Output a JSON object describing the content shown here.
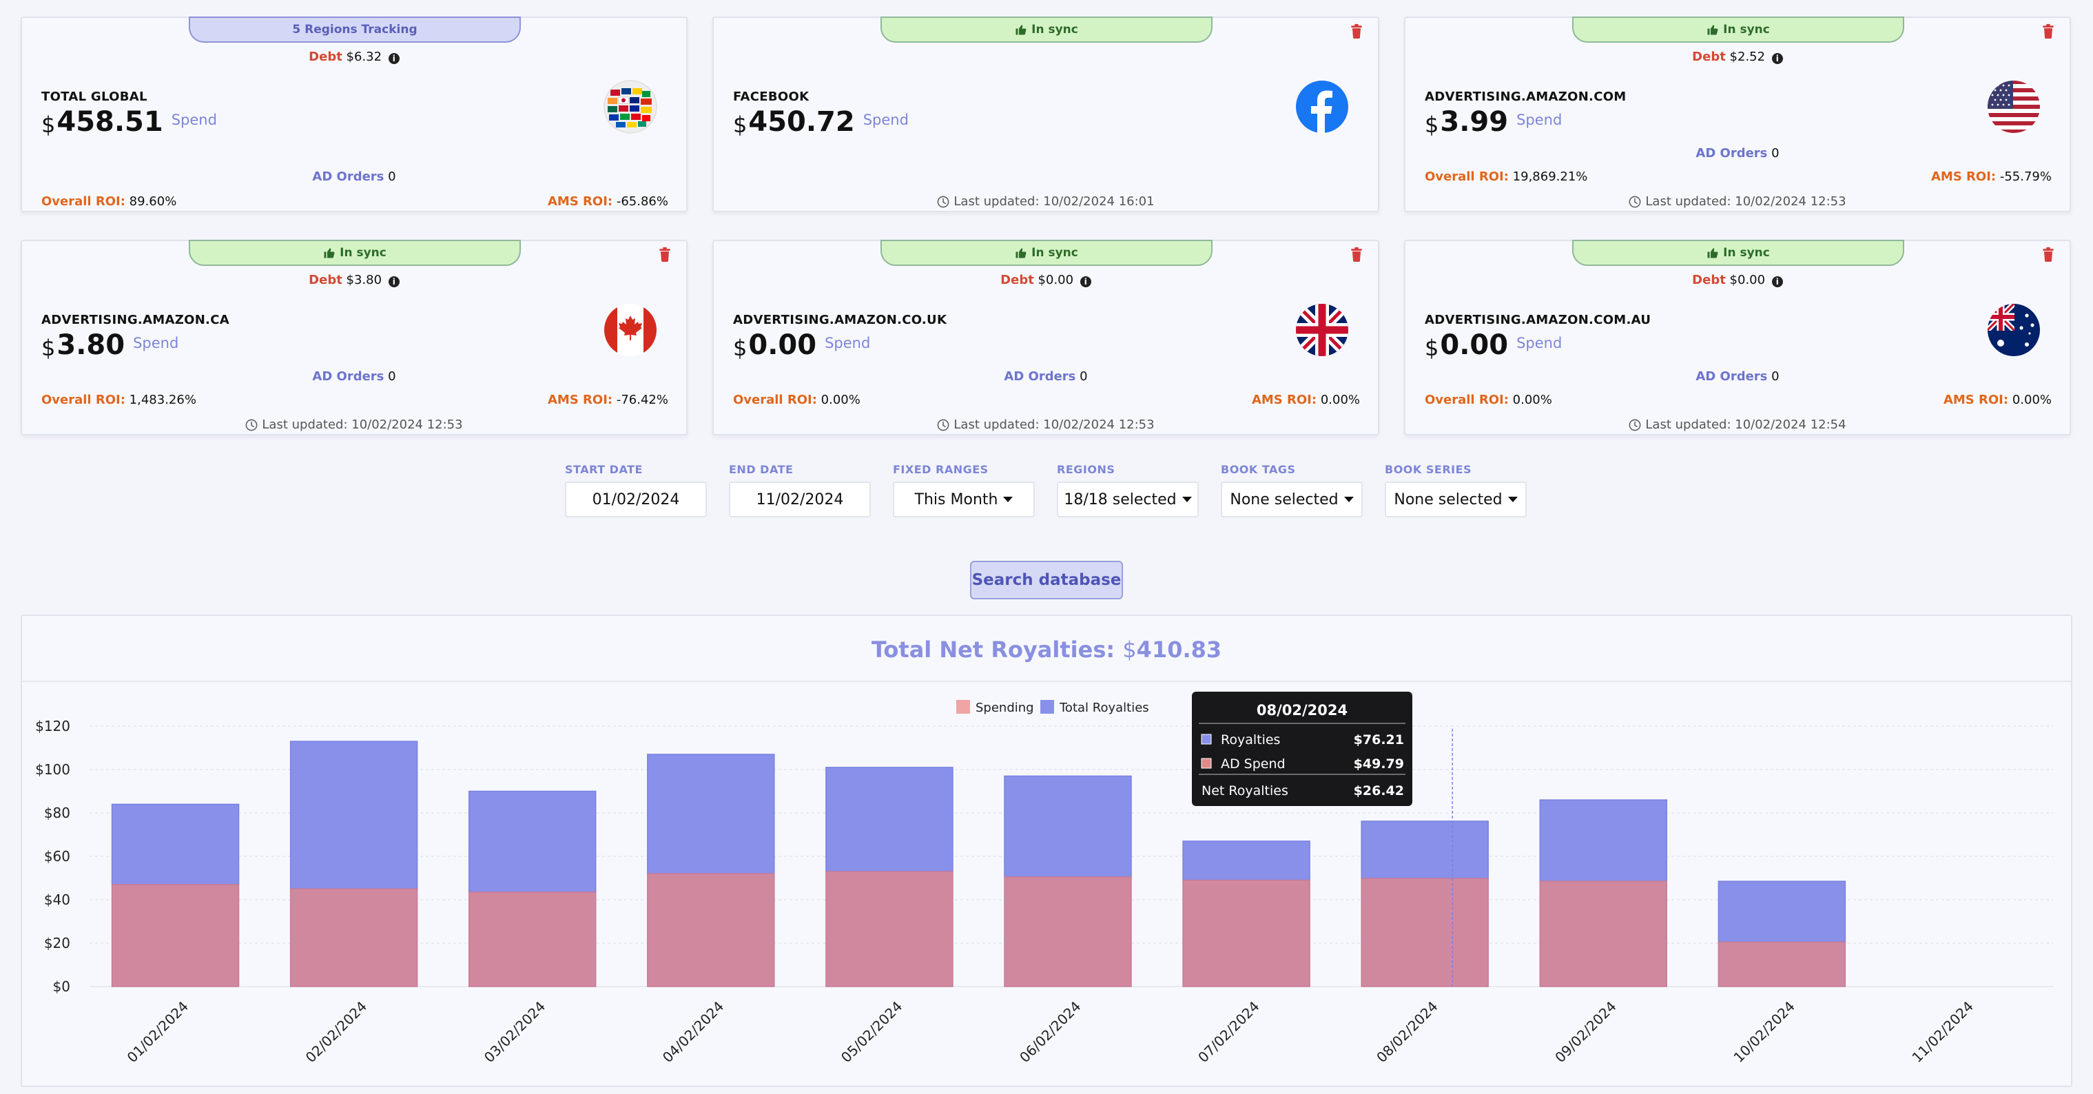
{
  "cards": [
    {
      "tab": "5 Regions Tracking",
      "tab_type": "tracking",
      "trash": false,
      "debt_label": "Debt",
      "debt_cur": "$",
      "debt_value": "6.32",
      "name": "TOTAL GLOBAL",
      "amount_cur": "$",
      "amount": "458.51",
      "spend_label": "Spend",
      "flag": "world",
      "ad_orders_label": "AD Orders",
      "ad_orders": "0",
      "overall_roi_label": "Overall ROI:",
      "overall_roi": "89.60%",
      "ams_roi_label": "AMS ROI:",
      "ams_roi": "-65.86%",
      "updated": ""
    },
    {
      "tab": "In sync",
      "tab_type": "sync",
      "trash": true,
      "debt_label": "",
      "debt_cur": "",
      "debt_value": "",
      "name": "FACEBOOK",
      "amount_cur": "$",
      "amount": "450.72",
      "spend_label": "Spend",
      "flag": "facebook",
      "ad_orders_label": "",
      "ad_orders": "",
      "overall_roi_label": "",
      "overall_roi": "",
      "ams_roi_label": "",
      "ams_roi": "",
      "updated": "Last updated: 10/02/2024 16:01"
    },
    {
      "tab": "In sync",
      "tab_type": "sync",
      "trash": true,
      "debt_label": "Debt",
      "debt_cur": "$",
      "debt_value": "2.52",
      "name": "ADVERTISING.AMAZON.COM",
      "amount_cur": "$",
      "amount": "3.99",
      "spend_label": "Spend",
      "flag": "us",
      "ad_orders_label": "AD Orders",
      "ad_orders": "0",
      "overall_roi_label": "Overall ROI:",
      "overall_roi": "19,869.21%",
      "ams_roi_label": "AMS ROI:",
      "ams_roi": "-55.79%",
      "updated": "Last updated: 10/02/2024 12:53"
    },
    {
      "tab": "In sync",
      "tab_type": "sync",
      "trash": true,
      "debt_label": "Debt",
      "debt_cur": "$",
      "debt_value": "3.80",
      "name": "ADVERTISING.AMAZON.CA",
      "amount_cur": "$",
      "amount": "3.80",
      "spend_label": "Spend",
      "flag": "ca",
      "ad_orders_label": "AD Orders",
      "ad_orders": "0",
      "overall_roi_label": "Overall ROI:",
      "overall_roi": "1,483.26%",
      "ams_roi_label": "AMS ROI:",
      "ams_roi": "-76.42%",
      "updated": "Last updated: 10/02/2024 12:53"
    },
    {
      "tab": "In sync",
      "tab_type": "sync",
      "trash": true,
      "debt_label": "Debt",
      "debt_cur": "$",
      "debt_value": "0.00",
      "name": "ADVERTISING.AMAZON.CO.UK",
      "amount_cur": "$",
      "amount": "0.00",
      "spend_label": "Spend",
      "flag": "uk",
      "ad_orders_label": "AD Orders",
      "ad_orders": "0",
      "overall_roi_label": "Overall ROI:",
      "overall_roi": "0.00%",
      "ams_roi_label": "AMS ROI:",
      "ams_roi": "0.00%",
      "updated": "Last updated: 10/02/2024 12:53"
    },
    {
      "tab": "In sync",
      "tab_type": "sync",
      "trash": true,
      "debt_label": "Debt",
      "debt_cur": "$",
      "debt_value": "0.00",
      "name": "ADVERTISING.AMAZON.COM.AU",
      "amount_cur": "$",
      "amount": "0.00",
      "spend_label": "Spend",
      "flag": "au",
      "ad_orders_label": "AD Orders",
      "ad_orders": "0",
      "overall_roi_label": "Overall ROI:",
      "overall_roi": "0.00%",
      "ams_roi_label": "AMS ROI:",
      "ams_roi": "0.00%",
      "updated": "Last updated: 10/02/2024 12:54"
    }
  ],
  "filters": [
    {
      "label": "START DATE",
      "value": "01/02/2024",
      "dropdown": false
    },
    {
      "label": "END DATE",
      "value": "11/02/2024",
      "dropdown": false
    },
    {
      "label": "FIXED RANGES",
      "value": "This Month",
      "dropdown": true
    },
    {
      "label": "REGIONS",
      "value": "18/18 selected",
      "dropdown": true
    },
    {
      "label": "BOOK TAGS",
      "value": "None selected",
      "dropdown": true
    },
    {
      "label": "BOOK SERIES",
      "value": "None selected",
      "dropdown": true
    }
  ],
  "search_label": "Search database",
  "chart_title": {
    "label": "Total Net Royalties:",
    "cur": "$",
    "value": "410.83"
  },
  "colors": {
    "royalties": "#8890ea",
    "spending": "#d0889f",
    "spending_legend": "#f0a4a4",
    "sync_tab": "#d4f3c4",
    "tracking_tab": "#d4d8f7"
  },
  "chart_data": {
    "type": "bar",
    "stacked": true,
    "categories": [
      "01/02/2024",
      "02/02/2024",
      "03/02/2024",
      "04/02/2024",
      "05/02/2024",
      "06/02/2024",
      "07/02/2024",
      "08/02/2024",
      "09/02/2024",
      "10/02/2024",
      "11/02/2024"
    ],
    "series": [
      {
        "name": "Spending",
        "values": [
          47,
          45,
          43.5,
          52,
          53,
          50.5,
          49,
          49.79,
          48.5,
          20.5,
          0
        ]
      },
      {
        "name": "Total Royalties",
        "values": [
          37,
          68,
          46.5,
          55,
          48,
          46.5,
          18,
          26.42,
          37.5,
          28,
          0
        ]
      }
    ],
    "y_ticks": [
      "$0",
      "$20",
      "$40",
      "$60",
      "$80",
      "$100",
      "$120"
    ],
    "ylim": [
      0,
      120
    ],
    "legend": "top-center",
    "grid": true,
    "tooltip": {
      "title": "08/02/2024",
      "rows": [
        {
          "label": "Royalties",
          "value": "$76.21",
          "color": "#8890ea"
        },
        {
          "label": "AD Spend",
          "value": "$49.79",
          "color": "#e08a8a"
        }
      ],
      "net_label": "Net Royalties",
      "net_value": "$26.42",
      "category_index": 7
    }
  }
}
